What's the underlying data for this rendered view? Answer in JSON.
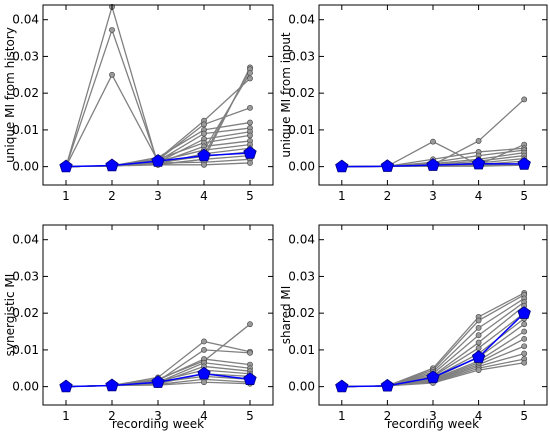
{
  "chart_data": [
    {
      "type": "line",
      "ylabel": "unique MI from history",
      "xlabel": "",
      "x": [
        1,
        2,
        3,
        4,
        5
      ],
      "xlim": [
        0.5,
        5.5
      ],
      "ylim": [
        -0.005,
        0.044
      ],
      "yticks": [
        0.0,
        0.01,
        0.02,
        0.03,
        0.04
      ],
      "ytick_labels": [
        "0.00",
        "0.01",
        "0.02",
        "0.03",
        "0.04"
      ],
      "xtick_labels": [
        "1",
        "2",
        "3",
        "4",
        "5"
      ],
      "series_color": "#808080",
      "mean_color": "#0000ff",
      "series": [
        {
          "values": [
            0.0,
            0.0435,
            0.0005,
            0.002,
            0.027
          ]
        },
        {
          "values": [
            0.0,
            0.0372,
            0.001,
            0.003,
            0.0265
          ]
        },
        {
          "values": [
            0.0,
            0.025,
            0.0015,
            0.0045,
            0.0255
          ]
        },
        {
          "values": [
            0.0,
            0.0002,
            0.002,
            0.0125,
            0.024
          ]
        },
        {
          "values": [
            0.0,
            0.0002,
            0.0018,
            0.0115,
            0.016
          ]
        },
        {
          "values": [
            0.0,
            0.0002,
            0.0025,
            0.01,
            0.012
          ]
        },
        {
          "values": [
            0.0,
            0.0002,
            0.0015,
            0.009,
            0.0105
          ]
        },
        {
          "values": [
            0.0,
            0.0002,
            0.0012,
            0.0075,
            0.0095
          ]
        },
        {
          "values": [
            0.0,
            0.0002,
            0.002,
            0.0065,
            0.0085
          ]
        },
        {
          "values": [
            0.0,
            0.0002,
            0.001,
            0.0055,
            0.007
          ]
        },
        {
          "values": [
            0.0,
            0.0002,
            0.0015,
            0.0045,
            0.006
          ]
        },
        {
          "values": [
            0.0,
            0.0002,
            0.0008,
            0.0035,
            0.005
          ]
        },
        {
          "values": [
            0.0,
            0.0002,
            0.0012,
            0.0028,
            0.004
          ]
        },
        {
          "values": [
            0.0,
            0.0002,
            0.0006,
            0.002,
            0.003
          ]
        },
        {
          "values": [
            0.0,
            0.0002,
            0.001,
            0.0012,
            0.002
          ]
        },
        {
          "values": [
            0.0,
            0.0002,
            0.0005,
            0.0005,
            0.001
          ]
        }
      ],
      "mean": [
        0.0,
        0.0003,
        0.0015,
        0.003,
        0.0037
      ]
    },
    {
      "type": "line",
      "ylabel": "unique MI from input",
      "xlabel": "",
      "x": [
        1,
        2,
        3,
        4,
        5
      ],
      "xlim": [
        0.5,
        5.5
      ],
      "ylim": [
        -0.005,
        0.044
      ],
      "yticks": [
        0.0,
        0.01,
        0.02,
        0.03,
        0.04
      ],
      "ytick_labels": [
        "0.00",
        "0.01",
        "0.02",
        "0.03",
        "0.04"
      ],
      "xtick_labels": [
        "1",
        "2",
        "3",
        "4",
        "5"
      ],
      "series_color": "#808080",
      "mean_color": "#0000ff",
      "series": [
        {
          "values": [
            0.0,
            0.0001,
            0.0005,
            0.007,
            0.0183
          ]
        },
        {
          "values": [
            0.0,
            0.0001,
            0.0068,
            0.0005,
            0.006
          ]
        },
        {
          "values": [
            0.0,
            0.0001,
            0.002,
            0.004,
            0.005
          ]
        },
        {
          "values": [
            0.0,
            0.0001,
            0.0012,
            0.003,
            0.0045
          ]
        },
        {
          "values": [
            0.0,
            0.0001,
            0.0008,
            0.002,
            0.0038
          ]
        },
        {
          "values": [
            0.0,
            0.0001,
            0.0005,
            0.0015,
            0.003
          ]
        },
        {
          "values": [
            0.0,
            0.0001,
            0.0003,
            0.001,
            0.0022
          ]
        },
        {
          "values": [
            0.0,
            0.0001,
            0.0002,
            0.0006,
            0.0015
          ]
        },
        {
          "values": [
            0.0,
            0.0001,
            0.0001,
            0.0003,
            0.0008
          ]
        },
        {
          "values": [
            0.0,
            0.0001,
            0.0001,
            0.0001,
            0.0004
          ]
        }
      ],
      "mean": [
        0.0,
        0.0001,
        0.0004,
        0.0008,
        0.0007
      ]
    },
    {
      "type": "line",
      "ylabel": "synergistic MI",
      "xlabel": "recording week",
      "x": [
        1,
        2,
        3,
        4,
        5
      ],
      "xlim": [
        0.5,
        5.5
      ],
      "ylim": [
        -0.005,
        0.044
      ],
      "yticks": [
        0.0,
        0.01,
        0.02,
        0.03,
        0.04
      ],
      "ytick_labels": [
        "0.00",
        "0.01",
        "0.02",
        "0.03",
        "0.04"
      ],
      "xtick_labels": [
        "1",
        "2",
        "3",
        "4",
        "5"
      ],
      "series_color": "#808080",
      "mean_color": "#0000ff",
      "series": [
        {
          "values": [
            0.0,
            0.0003,
            0.002,
            0.007,
            0.017
          ]
        },
        {
          "values": [
            0.0,
            0.0003,
            0.0025,
            0.0123,
            0.0095
          ]
        },
        {
          "values": [
            0.0,
            0.0003,
            0.0015,
            0.01,
            0.0092
          ]
        },
        {
          "values": [
            0.0,
            0.0003,
            0.0018,
            0.0075,
            0.006
          ]
        },
        {
          "values": [
            0.0,
            0.0003,
            0.0012,
            0.0065,
            0.005
          ]
        },
        {
          "values": [
            0.0,
            0.0003,
            0.001,
            0.0055,
            0.0042
          ]
        },
        {
          "values": [
            0.0,
            0.0003,
            0.0015,
            0.0045,
            0.0035
          ]
        },
        {
          "values": [
            0.0,
            0.0003,
            0.0008,
            0.0035,
            0.0028
          ]
        },
        {
          "values": [
            0.0,
            0.0003,
            0.0012,
            0.0028,
            0.002
          ]
        },
        {
          "values": [
            0.0,
            0.0003,
            0.0006,
            0.002,
            0.0012
          ]
        },
        {
          "values": [
            0.0,
            0.0003,
            0.0004,
            0.0012,
            0.0008
          ]
        }
      ],
      "mean": [
        0.0,
        0.0003,
        0.0012,
        0.0035,
        0.002
      ]
    },
    {
      "type": "line",
      "ylabel": "shared MI",
      "xlabel": "recording week",
      "x": [
        1,
        2,
        3,
        4,
        5
      ],
      "xlim": [
        0.5,
        5.5
      ],
      "ylim": [
        -0.005,
        0.044
      ],
      "yticks": [
        0.0,
        0.01,
        0.02,
        0.03,
        0.04
      ],
      "ytick_labels": [
        "0.00",
        "0.01",
        "0.02",
        "0.03",
        "0.04"
      ],
      "xtick_labels": [
        "1",
        "2",
        "3",
        "4",
        "5"
      ],
      "series_color": "#808080",
      "mean_color": "#0000ff",
      "series": [
        {
          "values": [
            0.0,
            0.0002,
            0.005,
            0.019,
            0.0255
          ]
        },
        {
          "values": [
            0.0,
            0.0002,
            0.0045,
            0.018,
            0.025
          ]
        },
        {
          "values": [
            0.0,
            0.0002,
            0.004,
            0.016,
            0.024
          ]
        },
        {
          "values": [
            0.0,
            0.0002,
            0.0035,
            0.014,
            0.023
          ]
        },
        {
          "values": [
            0.0,
            0.0002,
            0.003,
            0.012,
            0.022
          ]
        },
        {
          "values": [
            0.0,
            0.0002,
            0.0028,
            0.0105,
            0.02
          ]
        },
        {
          "values": [
            0.0,
            0.0002,
            0.0025,
            0.009,
            0.0185
          ]
        },
        {
          "values": [
            0.0,
            0.0002,
            0.0022,
            0.008,
            0.017
          ]
        },
        {
          "values": [
            0.0,
            0.0002,
            0.002,
            0.007,
            0.015
          ]
        },
        {
          "values": [
            0.0,
            0.0002,
            0.0018,
            0.0065,
            0.013
          ]
        },
        {
          "values": [
            0.0,
            0.0002,
            0.0016,
            0.006,
            0.011
          ]
        },
        {
          "values": [
            0.0,
            0.0002,
            0.0014,
            0.0055,
            0.009
          ]
        },
        {
          "values": [
            0.0,
            0.0002,
            0.0012,
            0.005,
            0.0075
          ]
        },
        {
          "values": [
            0.0,
            0.0002,
            0.001,
            0.0045,
            0.0065
          ]
        }
      ],
      "mean": [
        0.0,
        0.0002,
        0.0025,
        0.008,
        0.02
      ]
    }
  ]
}
